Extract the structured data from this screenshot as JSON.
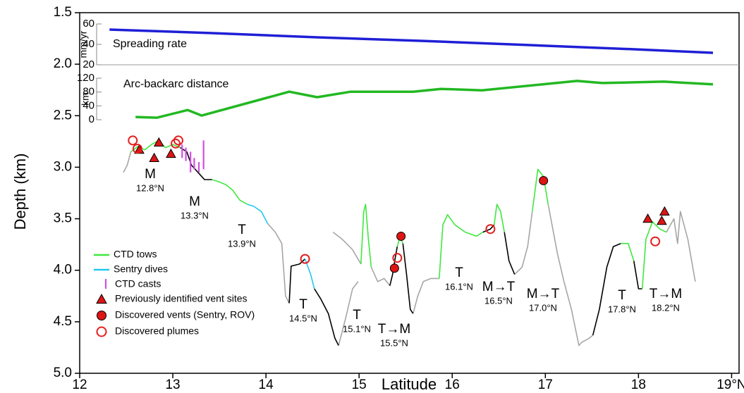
{
  "chart_data": [
    {
      "type": "line",
      "x_label": "Latitude",
      "y_label": "Depth (km)",
      "xlim": [
        12,
        19.08
      ],
      "ylim": [
        5.0,
        1.5
      ],
      "xticks": [
        12,
        13,
        14,
        15,
        16,
        17,
        18,
        {
          "value": 19,
          "label": "19°N"
        }
      ],
      "yticks": [
        1.5,
        {
          "value": 2,
          "label": "2.0"
        },
        2.5,
        {
          "value": 3,
          "label": "3.0"
        },
        3.5,
        {
          "value": 4,
          "label": "4.0"
        },
        4.5,
        {
          "value": 5,
          "label": "5.0"
        }
      ],
      "series": [
        {
          "color": "#a6a6a6",
          "x": [
            12.47,
            12.51,
            12.55,
            null,
            14.02,
            14.1,
            14.17,
            14.21,
            14.25,
            null,
            14.72,
            14.82,
            14.93,
            15.02,
            null,
            14.78,
            14.86,
            14.93,
            14.99,
            null,
            15.13,
            15.2,
            15.27,
            15.33,
            null,
            15.58,
            15.63,
            15.69,
            15.77,
            15.86,
            null,
            16.67,
            16.75,
            16.81,
            16.86,
            null,
            17.03,
            17.13,
            17.2,
            17.28,
            17.36,
            17.39,
            17.47,
            17.51,
            null,
            18.3,
            18.38,
            18.42,
            18.45,
            18.53,
            18.61
          ],
          "values": [
            3.05,
            2.98,
            2.85,
            null,
            3.55,
            3.63,
            3.74,
            4.25,
            4.32,
            null,
            3.63,
            3.7,
            3.8,
            3.94,
            null,
            4.73,
            4.45,
            4.18,
            4.11,
            null,
            3.97,
            4.11,
            4.08,
            4.15,
            null,
            4.42,
            4.25,
            4.11,
            4.08,
            4.08,
            null,
            4.04,
            3.97,
            3.77,
            3.43,
            null,
            3.36,
            3.84,
            4.11,
            4.38,
            4.73,
            4.7,
            4.66,
            4.63,
            null,
            3.63,
            3.5,
            3.74,
            3.43,
            3.7,
            4.11
          ]
        },
        {
          "color": "#000000",
          "x": [
            13.08,
            13.15,
            13.2,
            13.27,
            13.34,
            13.42,
            null,
            14.25,
            14.27,
            14.36,
            14.42,
            null,
            14.52,
            14.59,
            14.67,
            14.74,
            14.78,
            null,
            15.33,
            15.36,
            15.39,
            15.41,
            null,
            15.47,
            15.51,
            15.55,
            15.58,
            null,
            16.33,
            16.41,
            16.45,
            null,
            16.56,
            16.61,
            16.67,
            null,
            17.51,
            17.58,
            17.66,
            17.73,
            17.81,
            null,
            17.95,
            18.0,
            18.04
          ],
          "values": [
            2.81,
            2.85,
            2.98,
            3.05,
            3.12,
            3.12,
            null,
            4.32,
            3.96,
            3.94,
            3.89,
            null,
            4.18,
            4.28,
            4.42,
            4.66,
            4.73,
            null,
            4.15,
            4.04,
            3.87,
            3.77,
            null,
            3.74,
            4.04,
            4.38,
            4.42,
            null,
            3.63,
            3.6,
            3.56,
            null,
            3.63,
            3.91,
            4.04,
            null,
            4.63,
            4.38,
            3.97,
            3.77,
            3.74,
            null,
            3.91,
            4.18,
            4.18
          ]
        },
        {
          "name": "CTD tows",
          "color": "#3fe83f",
          "x": [
            12.55,
            12.62,
            12.7,
            12.77,
            12.85,
            12.92,
            13.0,
            13.08,
            null,
            13.42,
            13.49,
            13.57,
            13.64,
            13.72,
            13.8,
            null,
            15.02,
            15.05,
            15.07,
            15.1,
            15.13,
            null,
            15.41,
            15.44,
            15.47,
            null,
            15.86,
            15.9,
            15.95,
            16.03,
            16.14,
            16.26,
            16.33,
            null,
            16.45,
            16.48,
            16.52,
            16.56,
            null,
            16.86,
            16.92,
            16.98,
            17.03,
            null,
            17.81,
            17.89,
            17.95,
            null,
            18.04,
            18.08,
            18.15,
            18.23,
            18.3
          ],
          "values": [
            2.85,
            2.8,
            2.83,
            2.78,
            2.74,
            2.81,
            2.78,
            2.81,
            null,
            3.12,
            3.14,
            3.17,
            3.22,
            3.32,
            3.36,
            null,
            3.94,
            3.43,
            3.36,
            3.7,
            3.97,
            null,
            3.77,
            3.67,
            3.74,
            null,
            4.08,
            3.56,
            3.46,
            3.56,
            3.63,
            3.67,
            3.63,
            null,
            3.56,
            3.36,
            3.43,
            3.63,
            null,
            3.43,
            3.02,
            3.09,
            3.36,
            null,
            3.74,
            3.74,
            3.91,
            null,
            4.18,
            3.7,
            3.53,
            3.6,
            3.63
          ]
        },
        {
          "name": "Sentry dives",
          "color": "#22c8f0",
          "x": [
            13.8,
            13.87,
            13.95,
            14.02,
            null,
            14.42,
            14.48,
            14.52
          ],
          "values": [
            3.36,
            3.38,
            3.43,
            3.55,
            null,
            3.89,
            4.04,
            4.18
          ]
        },
        {
          "name": "CTD casts",
          "type": "segment",
          "color": "#d24fe0",
          "x": [
            13.1,
            13.14,
            13.19,
            13.23,
            13.28,
            13.33
          ],
          "values": [
            2.78,
            2.81,
            2.85,
            2.91,
            2.95,
            2.74
          ],
          "values_bottom": [
            2.91,
            2.94,
            3.05,
            3.02,
            3.05,
            3.02
          ]
        },
        {
          "name": "Previously identified vent sites",
          "type": "triangle",
          "color": "#dd1515",
          "x": [
            12.64,
            12.8,
            12.85,
            12.98,
            18.1,
            18.25,
            18.28
          ],
          "values": [
            2.83,
            2.91,
            2.76,
            2.87,
            3.5,
            3.52,
            3.43
          ]
        },
        {
          "name": "Discovered vents (Sentry, ROV)",
          "type": "circle",
          "color": "#dd1515",
          "x": [
            15.38,
            15.45,
            16.98
          ],
          "values": [
            3.98,
            3.67,
            3.13
          ]
        },
        {
          "name": "Discovered plumes",
          "type": "open-circle",
          "color": "#e52020",
          "x": [
            12.57,
            12.62,
            13.03,
            13.06,
            14.42,
            15.41,
            16.41,
            18.18
          ],
          "values": [
            2.74,
            2.82,
            2.77,
            2.74,
            3.89,
            3.88,
            3.6,
            3.72
          ]
        }
      ],
      "annotations": [
        {
          "text": "M",
          "sub": "12.8°N"
        },
        {
          "text": "M",
          "sub": "13.3°N"
        },
        {
          "text": "T",
          "sub": "13.9°N"
        },
        {
          "text": "T",
          "sub": "14.5°N"
        },
        {
          "text": "T",
          "sub": "15.1°N"
        },
        {
          "text": "T→M",
          "sub": "15.5°N"
        },
        {
          "text": "T",
          "sub": "16.1°N"
        },
        {
          "text": "M→T",
          "sub": "16.5°N"
        },
        {
          "text": "M→T",
          "sub": "17.0°N"
        },
        {
          "text": "T",
          "sub": "17.8°N"
        },
        {
          "text": "T→M",
          "sub": "18.2°N"
        }
      ]
    },
    {
      "type": "line",
      "label": "Spreading rate",
      "unit": "mm/yr",
      "color": "#1f1fd6",
      "ylim": [
        20,
        60
      ],
      "yticks": [
        20,
        40,
        60
      ],
      "x": [
        12.32,
        13.42,
        14.55,
        15.69,
        16.83,
        17.96,
        18.8
      ],
      "values": [
        54.5,
        51.0,
        46.9,
        43.4,
        39.3,
        35.2,
        31.7
      ]
    },
    {
      "type": "line",
      "label": "Arc-backarc distance",
      "unit": "km",
      "color": "#22b822",
      "ylim": [
        0,
        120
      ],
      "yticks": [
        0,
        40,
        80,
        120
      ],
      "x": [
        12.6,
        12.83,
        13.16,
        13.31,
        14.25,
        14.55,
        14.91,
        15.58,
        15.88,
        16.32,
        17.34,
        17.61,
        18.27,
        18.8
      ],
      "values": [
        8,
        6,
        28,
        12,
        81,
        65,
        81,
        81,
        89,
        85,
        112,
        106,
        110,
        102
      ]
    }
  ]
}
